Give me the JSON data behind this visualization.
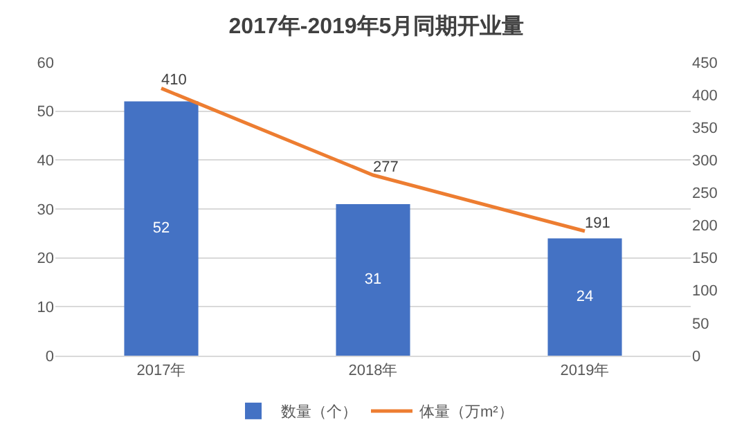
{
  "chart_data": {
    "type": "bar",
    "title": "2017年-2019年5月同期开业量",
    "categories": [
      "2017年",
      "2018年",
      "2019年"
    ],
    "series": [
      {
        "name": "数量（个）",
        "color": "#4472c4",
        "values": [
          52,
          31,
          24
        ]
      },
      {
        "name": "体量（万m²）",
        "type": "line",
        "axis": "y2",
        "color": "#ed7d31",
        "values": [
          410,
          277,
          191
        ]
      }
    ],
    "ylim": [
      0,
      60
    ],
    "yticks": [
      0,
      10,
      20,
      30,
      40,
      50,
      60
    ],
    "y2lim": [
      0,
      450
    ],
    "y2ticks": [
      0,
      50,
      100,
      150,
      200,
      250,
      300,
      350,
      400,
      450
    ],
    "grid": "y",
    "legend": "bottom",
    "data_labels": true,
    "marker": "none",
    "line_style": "solid"
  }
}
